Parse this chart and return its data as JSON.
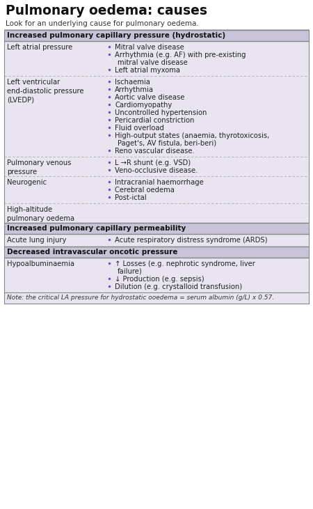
{
  "title": "Pulmonary oedema: causes",
  "subtitle": "Look for an underlying cause for pulmonary oedema.",
  "bg_color": "#e8e4f0",
  "white_bg": "#ffffff",
  "header_bg": "#c8c3d8",
  "header_text_color": "#111111",
  "body_text_color": "#222222",
  "bullet_color": "#6655bb",
  "note_bg": "#e8e4f0",
  "note_text": "Note: the critical LA pressure for hydrostatic ooedema = serum albumin (g/L) x 0.57.",
  "border_color": "#888888",
  "dot_line_color": "#aaaaaa",
  "sections": [
    {
      "header": "Increased pulmonary capillary pressure (hydrostatic)",
      "rows": [
        {
          "left": "Left atrial pressure",
          "bullets": [
            "Mitral valve disease",
            "Arrhythmia (e.g. AF) with pre-existing\nmitral valve disease",
            "Left atrial myxoma"
          ]
        },
        {
          "left": "Left ventricular\nend-diastolic pressure\n(LVEDP)",
          "bullets": [
            "Ischaemia",
            "Arrhythmia",
            "Aortic valve disease",
            "Cardiomyopathy",
            "Uncontrolled hypertension",
            "Pericardial constriction",
            "Fluid overload",
            "High-output states (anaemia, thyrotoxicosis,\nPaget's, AV fistula, beri-beri)",
            "Reno vascular disease."
          ]
        },
        {
          "left": "Pulmonary venous\npressure",
          "bullets": [
            "L →R shunt (e.g. VSD)",
            "Veno-occlusive disease."
          ]
        },
        {
          "left": "Neurogenic",
          "bullets": [
            "Intracranial haemorrhage",
            "Cerebral oedema",
            "Post-ictal"
          ]
        },
        {
          "left": "High-altitude\npulmonary oedema",
          "bullets": []
        }
      ]
    },
    {
      "header": "Increased pulmonary capillary permeability",
      "rows": [
        {
          "left": "Acute lung injury",
          "bullets": [
            "Acute respiratory distress syndrome (ARDS)"
          ]
        }
      ]
    },
    {
      "header": "Decreased intravascular oncotic pressure",
      "rows": [
        {
          "left": "Hypoalbuminaemia",
          "bullets": [
            "↑ Losses (e.g. nephrotic syndrome, liver\nfailure)",
            "↓ Production (e.g. sepsis)",
            "Dilution (e.g. crystalloid transfusion)"
          ]
        }
      ]
    }
  ]
}
